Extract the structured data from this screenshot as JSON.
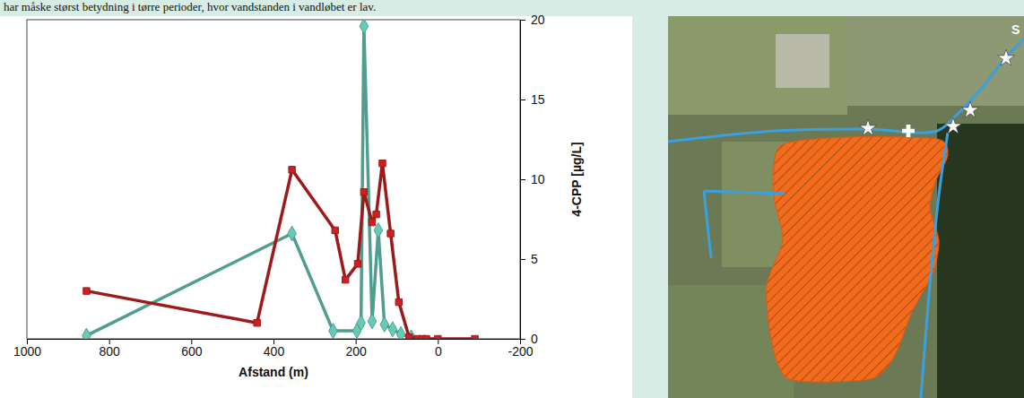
{
  "caption": "har måske størst betydning i tørre perioder, hvor vandstanden i vandløbet er lav.",
  "chart_data": {
    "type": "line",
    "x_label": "Afstand (m)",
    "y_label": "4-CPP [µg/L]",
    "xlim": [
      1000,
      -200
    ],
    "xticks": [
      1000,
      800,
      600,
      400,
      200,
      0,
      -200
    ],
    "ylim": [
      0,
      20
    ],
    "yticks": [
      0,
      5,
      10,
      15,
      20
    ],
    "grid": false,
    "series": [
      {
        "color": "#4f9e8f",
        "marker": "diamond",
        "x": [
          855,
          355,
          255,
          197,
          187,
          180,
          160,
          145,
          130,
          110,
          90,
          65
        ],
        "values": [
          0.2,
          6.6,
          0.5,
          0.5,
          1.0,
          19.6,
          1.1,
          6.8,
          0.9,
          0.6,
          0.3,
          0.1
        ]
      },
      {
        "color": "#9e1a1a",
        "marker": "square",
        "x": [
          855,
          440,
          355,
          250,
          225,
          195,
          180,
          160,
          150,
          135,
          115,
          95,
          70,
          50,
          38,
          28,
          0,
          -90
        ],
        "values": [
          3.0,
          1.0,
          10.6,
          6.8,
          3.7,
          4.7,
          9.2,
          7.3,
          7.8,
          11.0,
          6.6,
          2.3,
          0.1,
          0.0,
          0.0,
          0.0,
          0.0,
          0.0
        ]
      }
    ]
  },
  "map": {
    "label": "S"
  }
}
